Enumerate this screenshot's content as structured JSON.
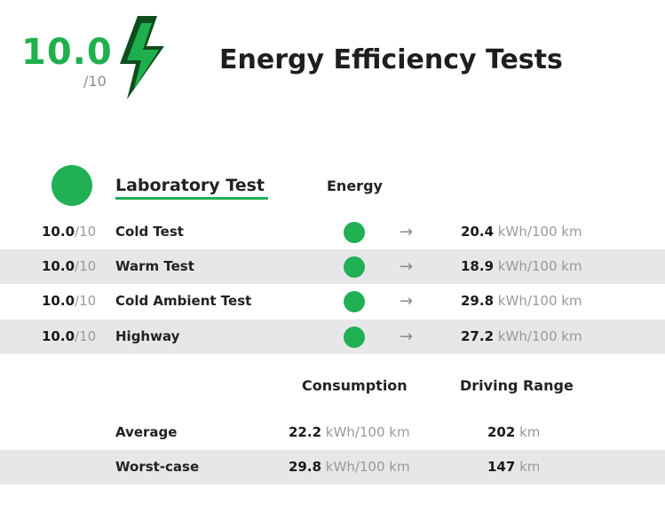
{
  "header": {
    "score": "10.0",
    "score_out_of": "/10",
    "title": "Energy Efficiency Tests",
    "icon": "lightning-bolt-icon"
  },
  "lab": {
    "title": "Laboratory Test",
    "column": "Energy"
  },
  "tests": [
    {
      "score": "10.0",
      "of": "/10",
      "name": "Cold Test",
      "value": "20.4",
      "unit": "kWh/100 km"
    },
    {
      "score": "10.0",
      "of": "/10",
      "name": "Warm Test",
      "value": "18.9",
      "unit": "kWh/100 km"
    },
    {
      "score": "10.0",
      "of": "/10",
      "name": "Cold Ambient Test",
      "value": "29.8",
      "unit": "kWh/100 km"
    },
    {
      "score": "10.0",
      "of": "/10",
      "name": "Highway",
      "value": "27.2",
      "unit": "kWh/100 km"
    }
  ],
  "arrow_glyph": "→",
  "summary": {
    "col_consumption": "Consumption",
    "col_range": "Driving Range",
    "rows": [
      {
        "label": "Average",
        "consumption": "22.2",
        "consumption_unit": "kWh/100 km",
        "range": "202",
        "range_unit": "km"
      },
      {
        "label": "Worst-case",
        "consumption": "29.8",
        "consumption_unit": "kWh/100 km",
        "range": "147",
        "range_unit": "km"
      }
    ]
  },
  "colors": {
    "accent": "#21b053",
    "bolt_dark": "#0f4d1d",
    "shade": "#e7e7e9"
  }
}
